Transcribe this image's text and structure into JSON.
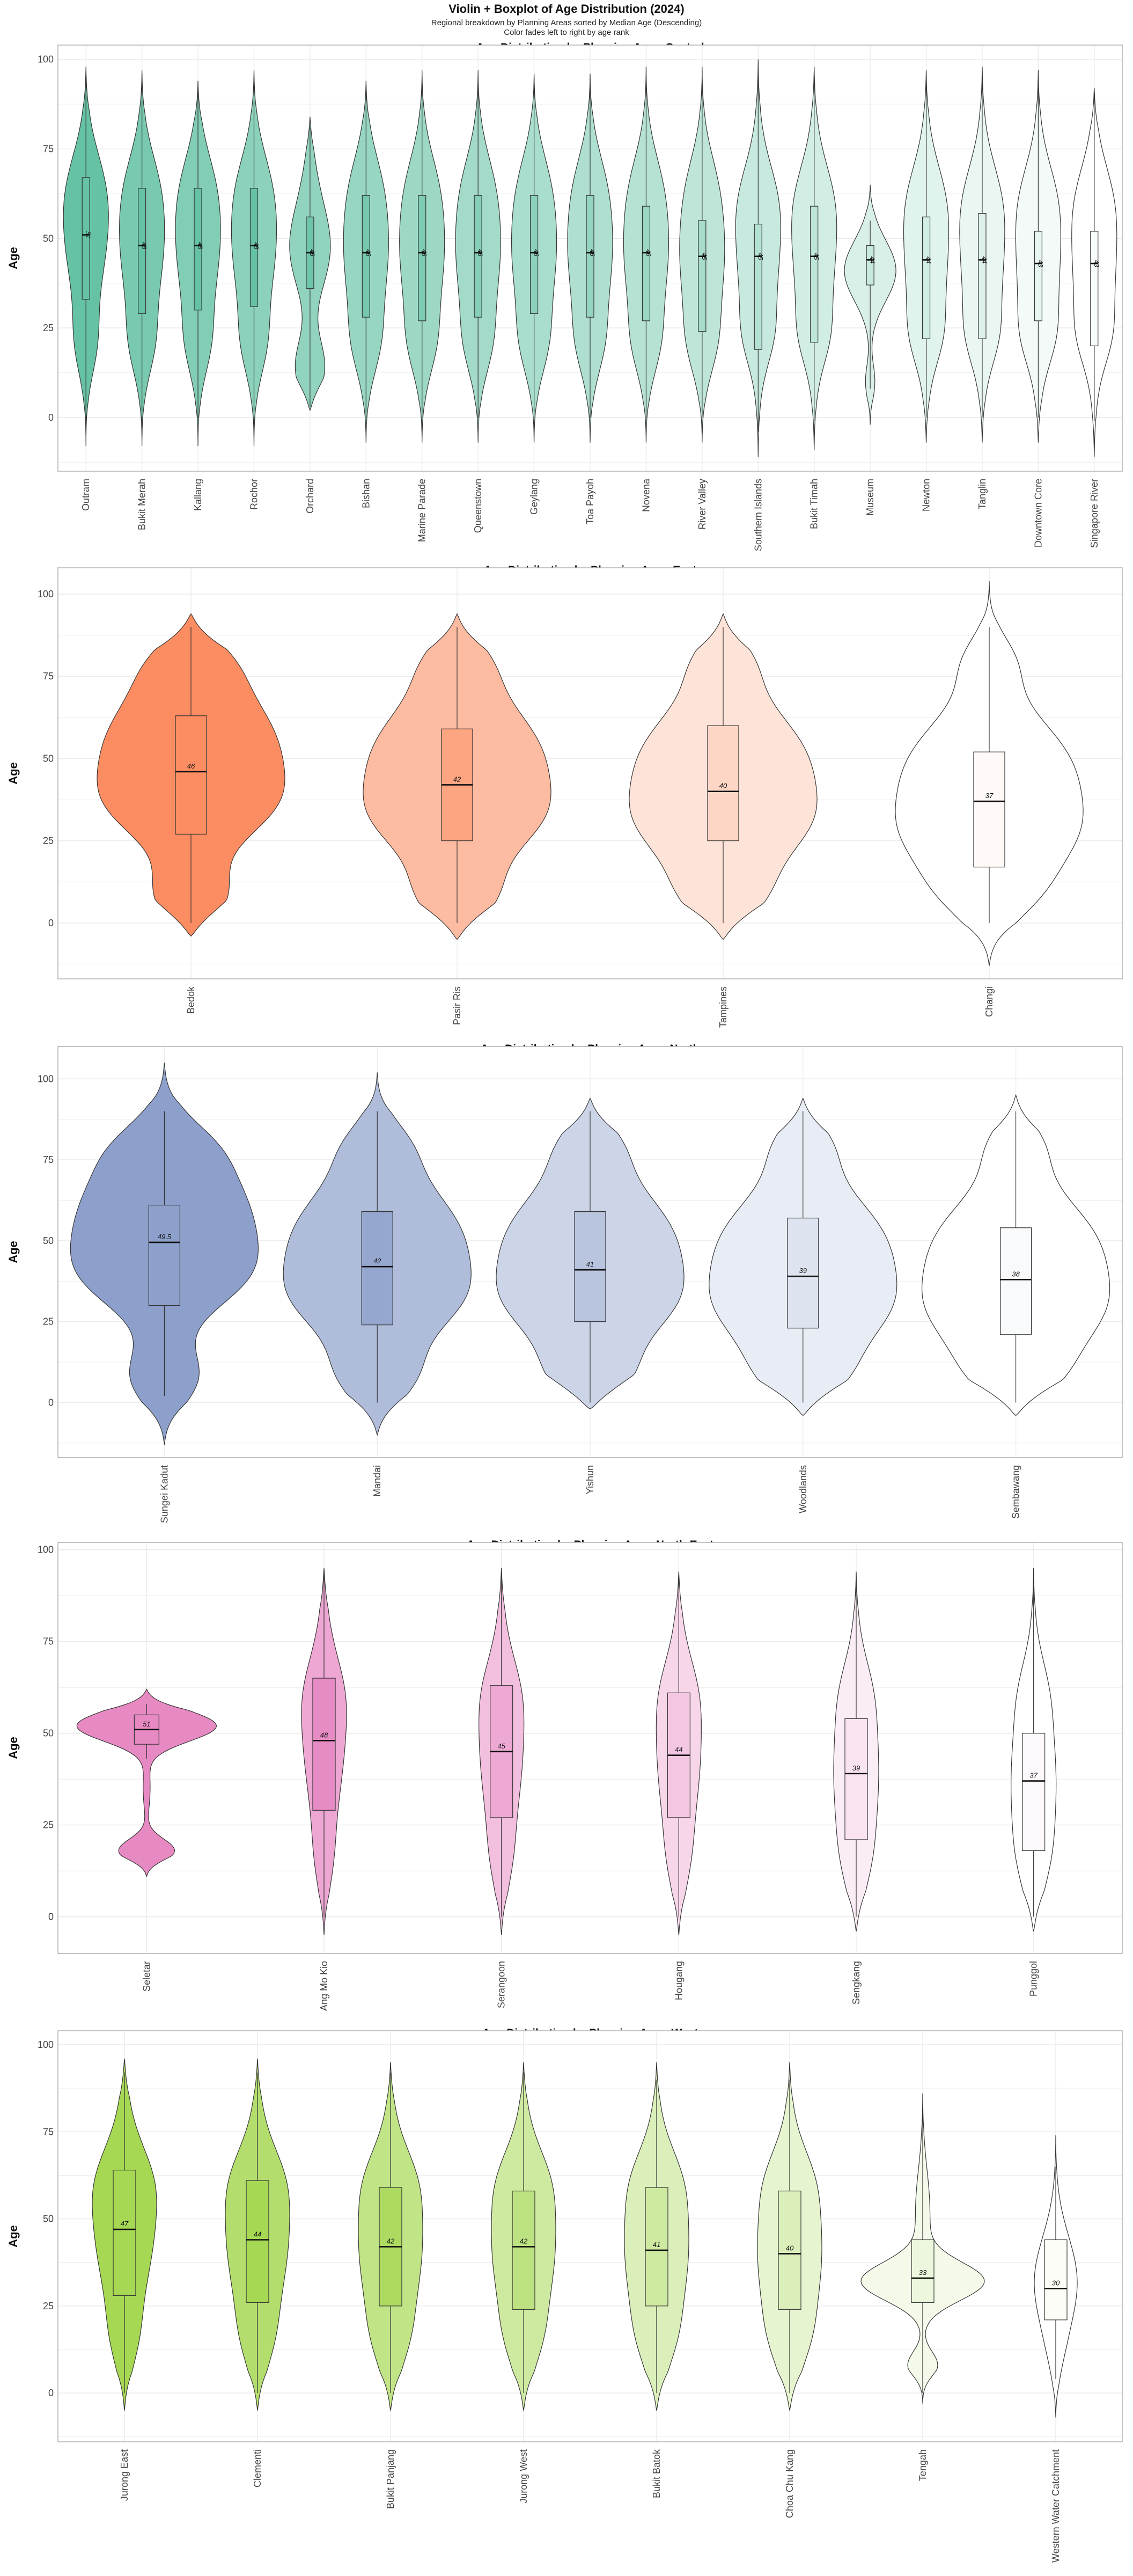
{
  "title": "Violin + Boxplot of Age Distribution (2024)",
  "subtitle": [
    "Regional breakdown by Planning Areas sorted by Median Age (Descending)",
    "Color fades left to right by age rank"
  ],
  "colors": {
    "Central": "#66c2a5",
    "East": "#fc8d62",
    "North": "#8da0cb",
    "North-East": "#e78ac3",
    "West": "#a6d854",
    "grid": "#ebebeb",
    "panel_border": "#b0b0b0",
    "outline": "#333333"
  },
  "chart_data": [
    {
      "type": "violin+box",
      "title": "Age Distribution by Planning Area:  Central",
      "region": "Central",
      "xlabel": "",
      "ylabel": "Age",
      "ylim": [
        -15,
        104
      ],
      "yticks": [
        0,
        25,
        50,
        75,
        100
      ],
      "categories": [
        "Outram",
        "Bukit Merah",
        "Kallang",
        "Rochor",
        "Orchard",
        "Bishan",
        "Marine Parade",
        "Queenstown",
        "Geylang",
        "Toa Payoh",
        "Novena",
        "River Valley",
        "Southern Islands",
        "Bukit Timah",
        "Museum",
        "Newton",
        "Tanglin",
        "Downtown Core",
        "Singapore River"
      ],
      "medians": [
        51,
        48,
        48,
        48,
        46,
        46,
        46,
        46,
        46,
        46,
        46,
        45,
        45,
        45,
        44,
        44,
        44,
        43,
        43
      ],
      "median_labels": [
        "51",
        "48",
        "48",
        "48",
        "46",
        "46",
        "46",
        "46",
        "46",
        "46",
        "46",
        "45",
        "45",
        "45",
        "44",
        "44",
        "44",
        "43",
        "43"
      ],
      "q1": [
        33,
        29,
        30,
        31,
        36,
        28,
        27,
        28,
        29,
        28,
        27,
        24,
        19,
        21,
        37,
        22,
        22,
        27,
        20
      ],
      "q3": [
        67,
        64,
        64,
        64,
        56,
        62,
        62,
        62,
        62,
        62,
        59,
        55,
        54,
        59,
        48,
        56,
        57,
        52,
        52
      ],
      "whisker_low": [
        -1,
        -1,
        0,
        -1,
        3,
        0,
        0,
        0,
        0,
        0,
        0,
        0,
        -4,
        -1,
        8,
        0,
        0,
        0,
        -1
      ],
      "whisker_high": [
        97,
        96,
        92,
        96,
        81,
        92,
        95,
        95,
        95,
        95,
        96,
        97,
        99,
        97,
        55,
        95,
        97,
        95,
        90
      ],
      "violin_extent": [
        [
          -8,
          98
        ],
        [
          -8,
          97
        ],
        [
          -8,
          94
        ],
        [
          -8,
          97
        ],
        [
          2,
          84
        ],
        [
          -7,
          94
        ],
        [
          -7,
          97
        ],
        [
          -7,
          97
        ],
        [
          -7,
          96
        ],
        [
          -7,
          96
        ],
        [
          -7,
          98
        ],
        [
          -7,
          98
        ],
        [
          -11,
          100
        ],
        [
          -9,
          98
        ],
        [
          -2,
          65
        ],
        [
          -7,
          97
        ],
        [
          -7,
          98
        ],
        [
          -7,
          97
        ],
        [
          -11,
          92
        ]
      ],
      "violin_shape": [
        "center",
        "center",
        "center",
        "center",
        "bimodal",
        "center",
        "center",
        "center",
        "center",
        "center",
        "center",
        "center",
        "tall",
        "tall",
        "pear",
        "tall",
        "tall",
        "tall",
        "tall"
      ],
      "color_weight": [
        1.0,
        0.88,
        0.82,
        0.76,
        0.72,
        0.68,
        0.64,
        0.6,
        0.56,
        0.52,
        0.48,
        0.42,
        0.36,
        0.3,
        0.25,
        0.2,
        0.14,
        0.08,
        0.0
      ]
    },
    {
      "type": "violin+box",
      "title": "Age Distribution by Planning Area:  East",
      "region": "East",
      "xlabel": "",
      "ylabel": "Age",
      "ylim": [
        -17,
        108
      ],
      "yticks": [
        0,
        25,
        50,
        75,
        100
      ],
      "categories": [
        "Bedok",
        "Pasir Ris",
        "Tampines",
        "Changi"
      ],
      "medians": [
        46,
        42,
        40,
        37
      ],
      "median_labels": [
        "46",
        "42",
        "40",
        "37"
      ],
      "q1": [
        27,
        25,
        25,
        17
      ],
      "q3": [
        63,
        59,
        60,
        52
      ],
      "whisker_low": [
        0,
        0,
        0,
        0
      ],
      "whisker_high": [
        90,
        90,
        90,
        90
      ],
      "violin_extent": [
        [
          -4,
          94
        ],
        [
          -5,
          94
        ],
        [
          -5,
          94
        ],
        [
          -13,
          104
        ]
      ],
      "violin_shape": [
        "wide",
        "wide",
        "wide",
        "wide"
      ],
      "color_weight": [
        1.0,
        0.6,
        0.25,
        0.0
      ]
    },
    {
      "type": "violin+box",
      "title": "Age Distribution by Planning Area:  North",
      "region": "North",
      "xlabel": "",
      "ylabel": "Age",
      "ylim": [
        -17,
        110
      ],
      "yticks": [
        0,
        25,
        50,
        75,
        100
      ],
      "categories": [
        "Sungei Kadut",
        "Mandai",
        "Yishun",
        "Woodlands",
        "Sembawang"
      ],
      "medians": [
        49.5,
        42,
        41,
        39,
        38
      ],
      "median_labels": [
        "49.5",
        "42",
        "41",
        "39",
        "38"
      ],
      "q1": [
        30,
        24,
        25,
        23,
        21
      ],
      "q3": [
        61,
        59,
        59,
        57,
        54
      ],
      "whisker_low": [
        2,
        0,
        0,
        0,
        0
      ],
      "whisker_high": [
        90,
        90,
        90,
        90,
        90
      ],
      "violin_extent": [
        [
          -13,
          105
        ],
        [
          -10,
          102
        ],
        [
          -2,
          94
        ],
        [
          -4,
          94
        ],
        [
          -4,
          95
        ]
      ],
      "violin_shape": [
        "wide",
        "wide",
        "wide",
        "wide",
        "wide"
      ],
      "color_weight": [
        1.0,
        0.7,
        0.45,
        0.2,
        0.0
      ]
    },
    {
      "type": "violin+box",
      "title": "Age Distribution by Planning Area:  North-East",
      "region": "North-East",
      "xlabel": "",
      "ylabel": "Age",
      "ylim": [
        -10,
        102
      ],
      "yticks": [
        0,
        25,
        50,
        75,
        100
      ],
      "categories": [
        "Seletar",
        "Ang Mo Kio",
        "Serangoon",
        "Hougang",
        "Sengkang",
        "Punggol"
      ],
      "medians": [
        51,
        48,
        45,
        44,
        39,
        37
      ],
      "median_labels": [
        "51",
        "48",
        "45",
        "44",
        "39",
        "37"
      ],
      "q1": [
        47,
        29,
        27,
        27,
        21,
        18
      ],
      "q3": [
        55,
        65,
        63,
        61,
        54,
        50
      ],
      "whisker_low": [
        43,
        0,
        0,
        0,
        0,
        0
      ],
      "whisker_high": [
        58,
        94,
        94,
        94,
        91,
        92
      ],
      "violin_extent": [
        [
          11,
          62
        ],
        [
          -5,
          95
        ],
        [
          -5,
          95
        ],
        [
          -5,
          94
        ],
        [
          -4,
          94
        ],
        [
          -4,
          95
        ]
      ],
      "violin_shape": [
        "seletar",
        "slim",
        "slim",
        "slim",
        "slim",
        "slim"
      ],
      "color_weight": [
        1.0,
        0.75,
        0.55,
        0.35,
        0.15,
        0.0
      ]
    },
    {
      "type": "violin+box",
      "title": "Age Distribution by Planning Area:  West",
      "region": "West",
      "xlabel": "",
      "ylabel": "Age",
      "ylim": [
        -14,
        104
      ],
      "yticks": [
        0,
        25,
        50,
        75,
        100
      ],
      "categories": [
        "Jurong East",
        "Clementi",
        "Bukit Panjang",
        "Jurong West",
        "Bukit Batok",
        "Choa Chu Kang",
        "Tengah",
        "Western Water Catchment"
      ],
      "medians": [
        47,
        44,
        42,
        42,
        41,
        40,
        33,
        30
      ],
      "median_labels": [
        "47",
        "44",
        "42",
        "42",
        "41",
        "40",
        "33",
        "30"
      ],
      "q1": [
        28,
        26,
        25,
        24,
        25,
        24,
        26,
        21
      ],
      "q3": [
        64,
        61,
        59,
        58,
        59,
        58,
        44,
        44
      ],
      "whisker_low": [
        0,
        0,
        0,
        0,
        0,
        0,
        0,
        4
      ],
      "whisker_high": [
        92,
        92,
        92,
        92,
        90,
        90,
        82,
        65
      ],
      "violin_extent": [
        [
          -5,
          96
        ],
        [
          -5,
          96
        ],
        [
          -5,
          95
        ],
        [
          -5,
          95
        ],
        [
          -5,
          95
        ],
        [
          -5,
          95
        ],
        [
          -3,
          86
        ],
        [
          -7,
          74
        ]
      ],
      "violin_shape": [
        "slim",
        "slim",
        "slim",
        "slim",
        "slim",
        "slim",
        "tengah",
        "wwc"
      ],
      "color_weight": [
        1.0,
        0.85,
        0.7,
        0.55,
        0.4,
        0.28,
        0.12,
        0.0
      ]
    }
  ]
}
